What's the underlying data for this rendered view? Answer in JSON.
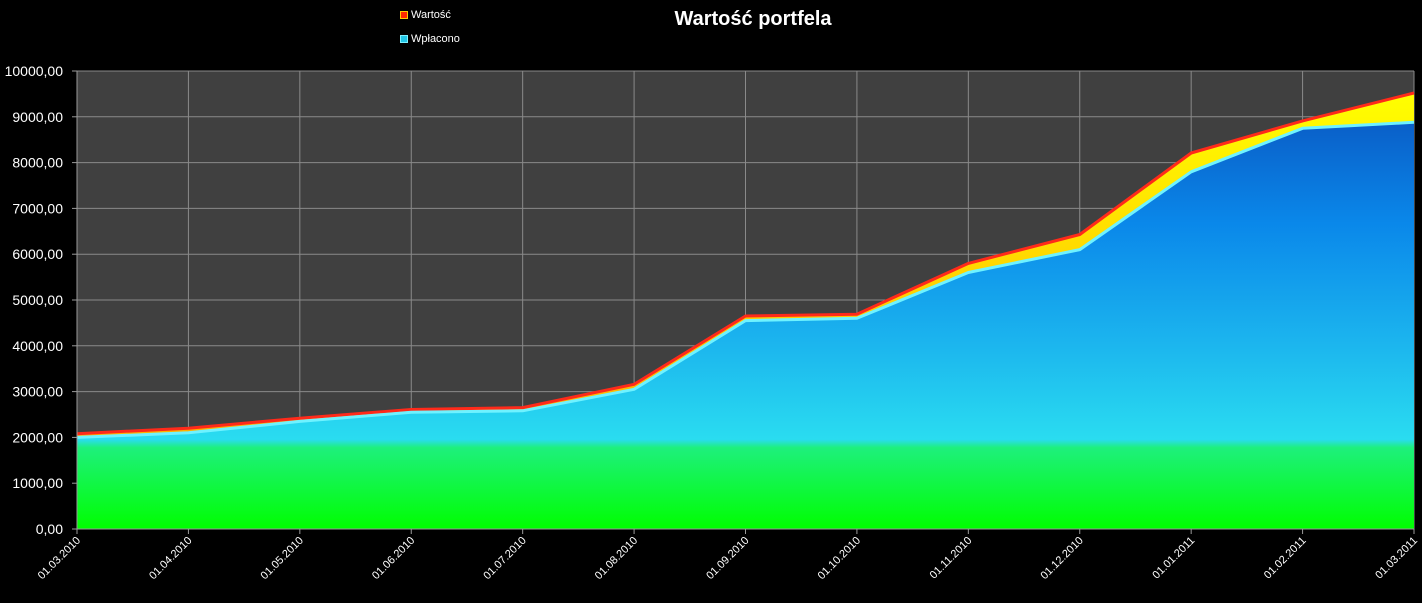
{
  "title": "Wartość portfela",
  "legend": [
    {
      "label": "Wartość",
      "color": "#ff2a00"
    },
    {
      "label": "Wpłacono",
      "color": "#22c6e6"
    }
  ],
  "chart_data": {
    "type": "area",
    "title": "Wartość portfela",
    "xlabel": "",
    "ylabel": "",
    "ylim": [
      0,
      10000
    ],
    "y_ticks": [
      "0,00",
      "1000,00",
      "2000,00",
      "3000,00",
      "4000,00",
      "5000,00",
      "6000,00",
      "7000,00",
      "8000,00",
      "9000,00",
      "10000,00"
    ],
    "categories": [
      "01.03.2010",
      "01.04.2010",
      "01.05.2010",
      "01.06.2010",
      "01.07.2010",
      "01.08.2010",
      "01.09.2010",
      "01.10.2010",
      "01.11.2010",
      "01.12.2010",
      "01.01.2011",
      "01.02.2011",
      "01.03.2011"
    ],
    "series": [
      {
        "name": "Wartość",
        "values": [
          2080,
          2200,
          2420,
          2610,
          2650,
          3160,
          4650,
          4690,
          5800,
          6430,
          8210,
          8910,
          9520
        ]
      },
      {
        "name": "Wpłacono",
        "values": [
          2000,
          2100,
          2350,
          2550,
          2580,
          3050,
          4550,
          4600,
          5600,
          6100,
          7800,
          8750,
          8880
        ]
      }
    ],
    "grid": true,
    "legend_position": "top-left"
  }
}
